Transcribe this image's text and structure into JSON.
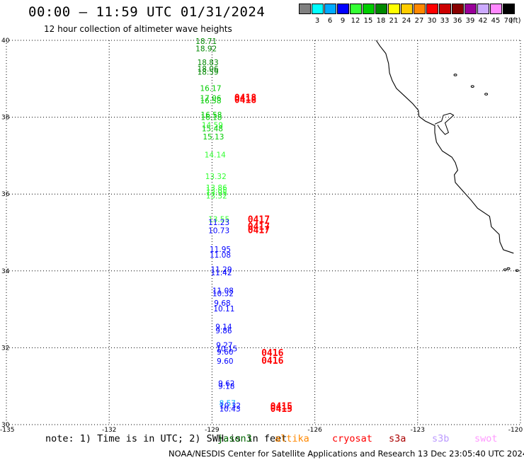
{
  "header": {
    "title": "00:00 – 11:59 UTC 01/31/2024",
    "subtitle": "12 hour collection of altimeter wave heights"
  },
  "legend": {
    "unit": "(ft)",
    "bins": [
      {
        "label": "",
        "color": "#808080"
      },
      {
        "label": "3",
        "color": "#00ffff"
      },
      {
        "label": "6",
        "color": "#00aaff"
      },
      {
        "label": "9",
        "color": "#0000ff"
      },
      {
        "label": "12",
        "color": "#33ff33"
      },
      {
        "label": "15",
        "color": "#00cc00"
      },
      {
        "label": "18",
        "color": "#008800"
      },
      {
        "label": "21",
        "color": "#ffff00"
      },
      {
        "label": "24",
        "color": "#ffcc00"
      },
      {
        "label": "27",
        "color": "#ff8800"
      },
      {
        "label": "30",
        "color": "#ff0000"
      },
      {
        "label": "33",
        "color": "#cc0000"
      },
      {
        "label": "36",
        "color": "#880000"
      },
      {
        "label": "39",
        "color": "#990099"
      },
      {
        "label": "42",
        "color": "#ccaaff"
      },
      {
        "label": "45",
        "color": "#ff88ff"
      },
      {
        "label": "70",
        "color": "#000000"
      }
    ]
  },
  "axes": {
    "lat_labels": [
      "40",
      "38",
      "36",
      "34",
      "32",
      "30"
    ],
    "lon_labels": [
      "-135",
      "-132",
      "-129",
      "-126",
      "-123",
      "-120"
    ]
  },
  "observations": [
    {
      "v": "18.71",
      "color": "#008800",
      "lon": -129.48,
      "lat": 39.91
    },
    {
      "v": "18.92",
      "color": "#008800",
      "lon": -129.48,
      "lat": 39.71
    },
    {
      "v": "18.83",
      "color": "#008800",
      "lon": -129.43,
      "lat": 39.36
    },
    {
      "v": "18.06",
      "color": "#008800",
      "lon": -129.43,
      "lat": 39.19
    },
    {
      "v": "18.59",
      "color": "#008800",
      "lon": -129.43,
      "lat": 39.11
    },
    {
      "v": "16.17",
      "color": "#00cc00",
      "lon": -129.35,
      "lat": 38.68
    },
    {
      "v": "17.06",
      "color": "#00cc00",
      "lon": -129.35,
      "lat": 38.43
    },
    {
      "v": "16.58",
      "color": "#00cc00",
      "lon": -129.35,
      "lat": 38.36
    },
    {
      "v": "16.58",
      "color": "#00cc00",
      "lon": -129.33,
      "lat": 37.99
    },
    {
      "v": "16.18",
      "color": "#00cc00",
      "lon": -129.33,
      "lat": 37.93
    },
    {
      "v": "14.59",
      "color": "#33ff33",
      "lon": -129.3,
      "lat": 37.73
    },
    {
      "v": "15.48",
      "color": "#00cc00",
      "lon": -129.3,
      "lat": 37.63
    },
    {
      "v": "15.13",
      "color": "#00cc00",
      "lon": -129.27,
      "lat": 37.42
    },
    {
      "v": "14.14",
      "color": "#33ff33",
      "lon": -129.22,
      "lat": 36.95
    },
    {
      "v": "13.32",
      "color": "#33ff33",
      "lon": -129.2,
      "lat": 36.39
    },
    {
      "v": "13.86",
      "color": "#33ff33",
      "lon": -129.18,
      "lat": 36.1
    },
    {
      "v": "13.85",
      "color": "#33ff33",
      "lon": -129.18,
      "lat": 36.03
    },
    {
      "v": "13.95",
      "color": "#33ff33",
      "lon": -129.18,
      "lat": 35.97
    },
    {
      "v": "13.32",
      "color": "#33ff33",
      "lon": -129.18,
      "lat": 35.88
    },
    {
      "v": "13.55",
      "color": "#33ff33",
      "lon": -129.11,
      "lat": 35.28
    },
    {
      "v": "11.23",
      "color": "#0000ff",
      "lon": -129.11,
      "lat": 35.19
    },
    {
      "v": "10.73",
      "color": "#0000ff",
      "lon": -129.11,
      "lat": 34.98
    },
    {
      "v": "11.95",
      "color": "#0000ff",
      "lon": -129.07,
      "lat": 34.49
    },
    {
      "v": "11.08",
      "color": "#0000ff",
      "lon": -129.07,
      "lat": 34.35
    },
    {
      "v": "11.29",
      "color": "#0000ff",
      "lon": -129.04,
      "lat": 33.97
    },
    {
      "v": "11.42",
      "color": "#0000ff",
      "lon": -129.04,
      "lat": 33.89
    },
    {
      "v": "11.08",
      "color": "#0000ff",
      "lon": -128.99,
      "lat": 33.42
    },
    {
      "v": "10.32",
      "color": "#0000ff",
      "lon": -128.99,
      "lat": 33.34
    },
    {
      "v": "9.68",
      "color": "#0000ff",
      "lon": -128.94,
      "lat": 33.09
    },
    {
      "v": "10.11",
      "color": "#0000ff",
      "lon": -128.96,
      "lat": 32.95
    },
    {
      "v": "9.14",
      "color": "#0000ff",
      "lon": -128.9,
      "lat": 32.48
    },
    {
      "v": "9.86",
      "color": "#0000ff",
      "lon": -128.9,
      "lat": 32.38
    },
    {
      "v": "9.27",
      "color": "#0000ff",
      "lon": -128.88,
      "lat": 32.0
    },
    {
      "v": "10.15",
      "color": "#0000ff",
      "lon": -128.88,
      "lat": 31.91
    },
    {
      "v": "9.60",
      "color": "#0000ff",
      "lon": -128.86,
      "lat": 31.82
    },
    {
      "v": "9.60",
      "color": "#0000ff",
      "lon": -128.86,
      "lat": 31.58
    },
    {
      "v": "9.62",
      "color": "#0000ff",
      "lon": -128.82,
      "lat": 31.0
    },
    {
      "v": "9.18",
      "color": "#0000ff",
      "lon": -128.82,
      "lat": 30.93
    },
    {
      "v": "8.57",
      "color": "#00aaff",
      "lon": -128.79,
      "lat": 30.49
    },
    {
      "v": "10.32",
      "color": "#0000ff",
      "lon": -128.78,
      "lat": 30.42
    },
    {
      "v": "10.43",
      "color": "#0000ff",
      "lon": -128.79,
      "lat": 30.34
    }
  ],
  "revolutions": [
    {
      "v": "0418",
      "lon": -128.35,
      "lat": 38.43
    },
    {
      "v": "0418",
      "lon": -128.35,
      "lat": 38.37
    },
    {
      "v": "0417",
      "lon": -127.96,
      "lat": 35.26
    },
    {
      "v": "0417",
      "lon": -127.96,
      "lat": 35.07
    },
    {
      "v": "0417",
      "lon": -127.96,
      "lat": 34.98
    },
    {
      "v": "0416",
      "lon": -127.56,
      "lat": 31.79
    },
    {
      "v": "0416",
      "lon": -127.56,
      "lat": 31.58
    },
    {
      "v": "0415",
      "lon": -127.3,
      "lat": 30.4
    },
    {
      "v": "0415",
      "lon": -127.3,
      "lat": 30.33
    }
  ],
  "note": "note: 1) Time is in UTC; 2) SWH is in feet",
  "satellites": [
    {
      "name": "jason3",
      "color": "#006600"
    },
    {
      "name": "altika",
      "color": "#ff8800"
    },
    {
      "name": "cryosat",
      "color": "#ff0000"
    },
    {
      "name": "s3a",
      "color": "#aa0000"
    },
    {
      "name": "s3b",
      "color": "#bb99ff"
    },
    {
      "name": "swot",
      "color": "#ff99ff"
    }
  ],
  "footer": "NOAA/NESDIS Center for Satellite Applications and Research    13 Dec 23:05:40 UTC 2024"
}
